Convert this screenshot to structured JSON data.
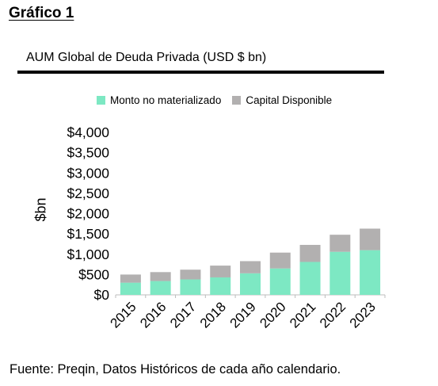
{
  "heading": "Gráfico 1",
  "source_note": "Fuente: Preqin, Datos Históricos de cada año calendario.",
  "chart_data": {
    "type": "bar",
    "stacked": true,
    "title": "AUM Global de Deuda Privada (USD $ bn)",
    "xlabel": "",
    "ylabel": "$bn",
    "ylim": [
      0,
      4000
    ],
    "yticks": [
      0,
      500,
      1000,
      1500,
      2000,
      2500,
      3000,
      3500,
      4000
    ],
    "ytick_labels": [
      "$0",
      "$500",
      "$1,000",
      "$1,500",
      "$2,000",
      "$2,500",
      "$3,000",
      "$3,500",
      "$4,000"
    ],
    "categories": [
      "2015",
      "2016",
      "2017",
      "2018",
      "2019",
      "2020",
      "2021",
      "2022",
      "2023"
    ],
    "series": [
      {
        "name": "Monto no materializado",
        "color": "#7de8c3",
        "values": [
          300,
          340,
          380,
          430,
          530,
          650,
          810,
          1060,
          1100
        ]
      },
      {
        "name": "Capital Disponible",
        "color": "#b2b0b0",
        "values": [
          200,
          220,
          240,
          290,
          300,
          390,
          420,
          420,
          530
        ]
      }
    ],
    "legend_position": "top",
    "grid": false
  }
}
